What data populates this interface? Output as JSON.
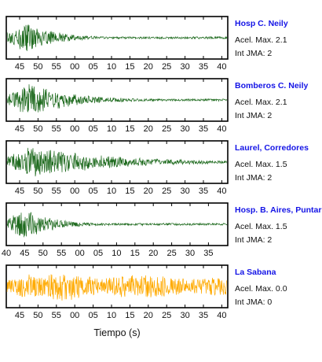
{
  "chart_data": [
    {
      "type": "line",
      "station": "Hosp C. Neily",
      "accel_label": "Acel. Max. 2.1",
      "jma_label": "Int JMA: 2",
      "x_ticks": [
        "45",
        "50",
        "55",
        "00",
        "05",
        "10",
        "15",
        "20",
        "25",
        "30",
        "35",
        "40"
      ],
      "trace_color": "#1f6b1f",
      "peak_at_tick": 0.4,
      "decay": "fast",
      "amplitude": 1.0
    },
    {
      "type": "line",
      "station": "Bomberos C. Neily",
      "accel_label": "Acel. Max. 2.1",
      "jma_label": "Int JMA: 2",
      "x_ticks": [
        "45",
        "50",
        "55",
        "00",
        "05",
        "10",
        "15",
        "20",
        "25",
        "30",
        "35",
        "40"
      ],
      "trace_color": "#1f6b1f",
      "peak_at_tick": 0.6,
      "decay": "medium",
      "amplitude": 1.0
    },
    {
      "type": "line",
      "station": "Laurel, Corredores",
      "accel_label": "Acel. Max. 1.5",
      "jma_label": "Int JMA: 2",
      "x_ticks": [
        "45",
        "50",
        "55",
        "00",
        "05",
        "10",
        "15",
        "20",
        "25",
        "30",
        "35",
        "40"
      ],
      "trace_color": "#1f6b1f",
      "peak_at_tick": 0.7,
      "decay": "slow",
      "amplitude": 1.0
    },
    {
      "type": "line",
      "station": "Hosp. B. Aires, Puntarenas",
      "accel_label": "Acel. Max. 1.5",
      "jma_label": "Int JMA: 2",
      "x_ticks": [
        "40",
        "45",
        "50",
        "55",
        "00",
        "05",
        "10",
        "15",
        "20",
        "25",
        "30",
        "35"
      ],
      "trace_color": "#1f6b1f",
      "peak_at_tick": 0.3,
      "decay": "fast",
      "amplitude": 1.0
    },
    {
      "type": "line",
      "station": "La Sabana",
      "accel_label": "Acel. Max. 0.0",
      "jma_label": "Int JMA: 0",
      "x_ticks": [
        "45",
        "50",
        "55",
        "00",
        "05",
        "10",
        "15",
        "20",
        "25",
        "30",
        "35",
        "40"
      ],
      "trace_color": "#ffaa00",
      "peak_at_tick": 3.6,
      "decay": "slow",
      "amplitude": 1.0
    }
  ],
  "x_axis_label": "Tiempo (s)"
}
